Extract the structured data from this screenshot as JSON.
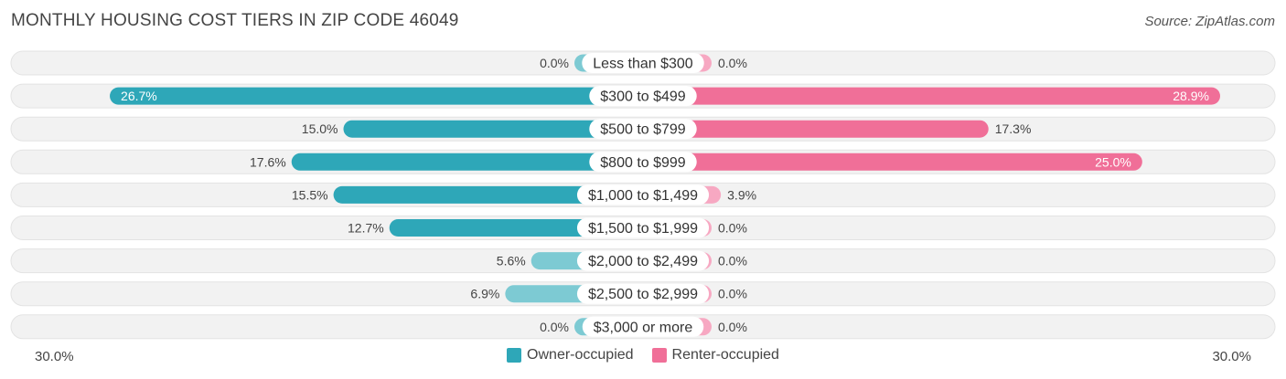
{
  "chart_data": {
    "type": "bar",
    "orientation": "diverging-horizontal",
    "title": "MONTHLY HOUSING COST TIERS IN ZIP CODE 46049",
    "source": "Source: ZipAtlas.com",
    "categories": [
      "Less than $300",
      "$300 to $499",
      "$500 to $799",
      "$800 to $999",
      "$1,000 to $1,499",
      "$1,500 to $1,999",
      "$2,000 to $2,499",
      "$2,500 to $2,999",
      "$3,000 or more"
    ],
    "series": [
      {
        "name": "Owner-occupied",
        "color": "#2ea7b8",
        "color_light": "#7dcad3",
        "values": [
          0.0,
          26.7,
          15.0,
          17.6,
          15.5,
          12.7,
          5.6,
          6.9,
          0.0
        ],
        "labels": [
          "0.0%",
          "26.7%",
          "15.0%",
          "17.6%",
          "15.5%",
          "12.7%",
          "5.6%",
          "6.9%",
          "0.0%"
        ]
      },
      {
        "name": "Renter-occupied",
        "color": "#f06f98",
        "color_light": "#f7a8c2",
        "values": [
          0.0,
          28.9,
          17.3,
          25.0,
          3.9,
          0.0,
          0.0,
          0.0,
          0.0
        ],
        "labels": [
          "0.0%",
          "28.9%",
          "17.3%",
          "25.0%",
          "3.9%",
          "0.0%",
          "0.0%",
          "0.0%",
          "0.0%"
        ]
      }
    ],
    "xlim": [
      -30,
      30
    ],
    "axis_left_label": "30.0%",
    "axis_right_label": "30.0%",
    "legend_position": "bottom-center",
    "grid": false
  }
}
